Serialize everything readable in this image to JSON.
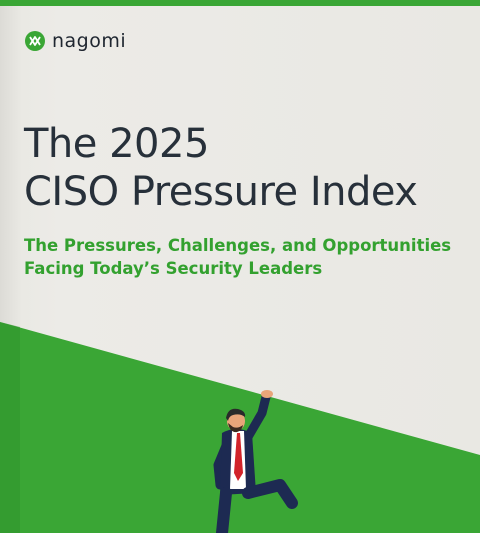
{
  "brand": {
    "name": "nagomi",
    "logo_icon": "nagomi-logo-icon",
    "color": "#3aa635"
  },
  "cover": {
    "title_line1": "The 2025",
    "title_line2": "CISO Pressure Index",
    "subtitle_line1": "The Pressures, Challenges, and Opportunities",
    "subtitle_line2": "Facing Today’s Security Leaders",
    "illustration": "businessman-pushing-slope-illustration"
  },
  "colors": {
    "title": "#27303a",
    "accent_green": "#3aa635",
    "background": "#ecebe7"
  }
}
